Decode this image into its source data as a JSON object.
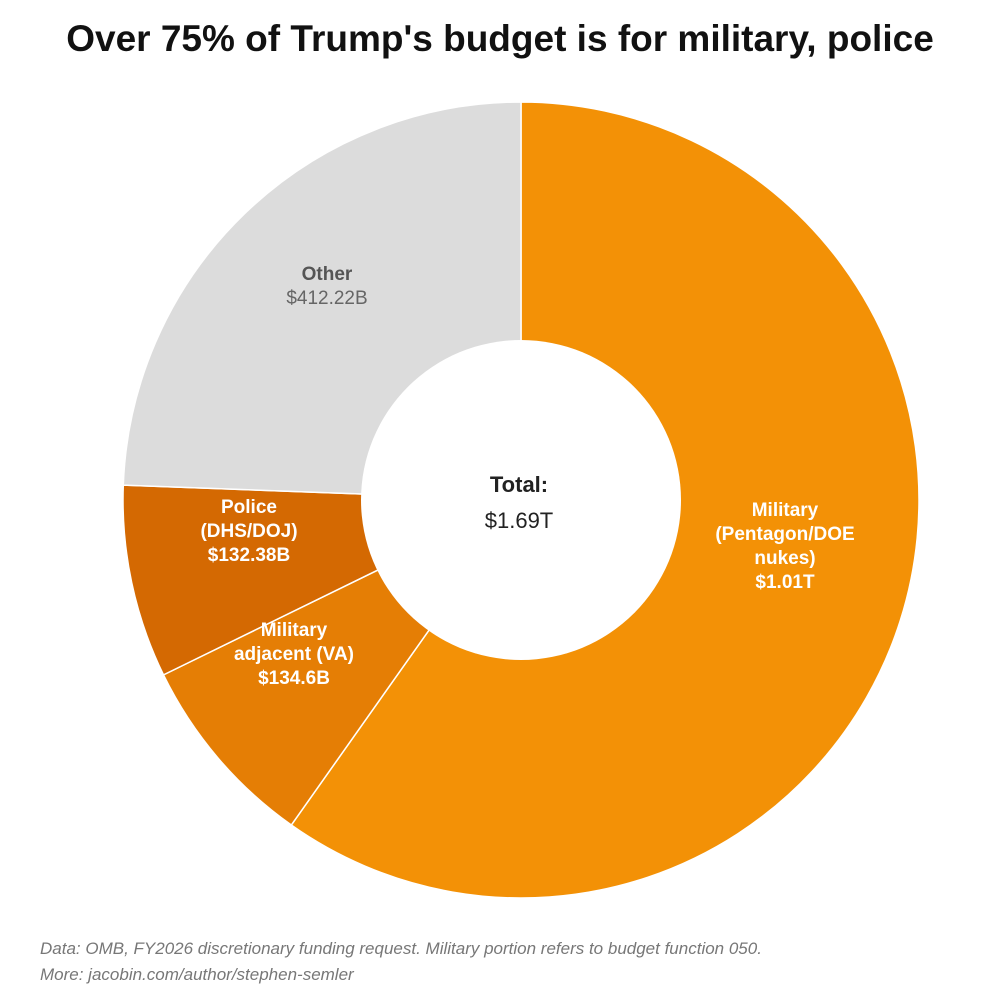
{
  "title": "Over 75% of Trump's budget is for military, police",
  "chart_data": {
    "type": "pie",
    "variant": "donut",
    "title": "Over 75% of Trump's budget is for military, police",
    "unit": "billions USD",
    "slices": [
      {
        "name": "Military (Pentagon/DOE nukes)",
        "value": 1010,
        "label_lines": [
          "Military",
          "(Pentagon/DOE",
          "nukes)"
        ],
        "value_label": "$1.01T",
        "color": "#F39106"
      },
      {
        "name": "Military adjacent (VA)",
        "value": 134.6,
        "label_lines": [
          "Military",
          "adjacent (VA)"
        ],
        "value_label": "$134.6B",
        "color": "#E57E05"
      },
      {
        "name": "Police (DHS/DOJ)",
        "value": 132.38,
        "label_lines": [
          "Police",
          "(DHS/DOJ)"
        ],
        "value_label": "$132.38B",
        "color": "#D46902"
      },
      {
        "name": "Other",
        "value": 412.22,
        "label_lines": [
          "Other"
        ],
        "value_label": "$412.22B",
        "color": "#DCDCDC"
      }
    ],
    "center_label": "Total:",
    "center_value": "$1.69T"
  },
  "footer": {
    "source": "Data: OMB, FY2026 discretionary funding request. Military portion refers to budget function 050.",
    "more": "More: jacobin.com/author/stephen-semler"
  }
}
